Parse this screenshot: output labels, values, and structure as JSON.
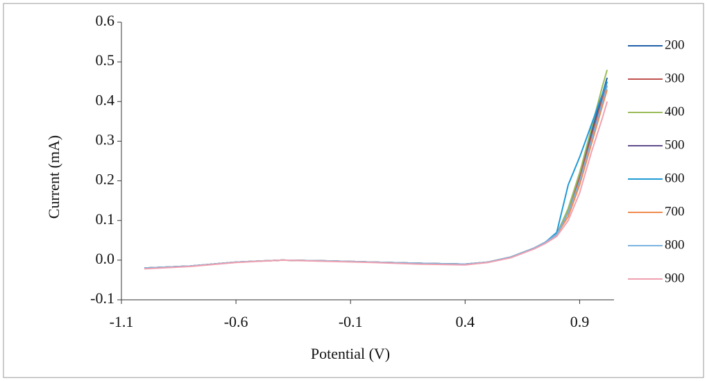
{
  "chart_data": {
    "type": "line",
    "x_label": "Potential (V)",
    "y_label": "Current (mA)",
    "x": [
      -1.0,
      -0.8,
      -0.6,
      -0.4,
      -0.2,
      0.0,
      0.2,
      0.4,
      0.5,
      0.6,
      0.7,
      0.75,
      0.8,
      0.85,
      0.9,
      0.95,
      1.0,
      1.02
    ],
    "series": [
      {
        "name": "200",
        "color": "#1f5fa8",
        "values": [
          -0.02,
          -0.015,
          -0.005,
          0,
          -0.002,
          -0.005,
          -0.008,
          -0.01,
          -0.005,
          0.008,
          0.03,
          0.045,
          0.065,
          0.13,
          0.22,
          0.32,
          0.42,
          0.46
        ]
      },
      {
        "name": "300",
        "color": "#c0504d",
        "values": [
          -0.02,
          -0.015,
          -0.005,
          0,
          -0.002,
          -0.005,
          -0.008,
          -0.01,
          -0.005,
          0.008,
          0.03,
          0.045,
          0.065,
          0.12,
          0.21,
          0.31,
          0.41,
          0.45
        ]
      },
      {
        "name": "400",
        "color": "#9bbb59",
        "values": [
          -0.02,
          -0.015,
          -0.005,
          0,
          -0.002,
          -0.005,
          -0.008,
          -0.01,
          -0.005,
          0.008,
          0.03,
          0.045,
          0.065,
          0.13,
          0.22,
          0.33,
          0.44,
          0.48
        ]
      },
      {
        "name": "500",
        "color": "#5f4b8b",
        "values": [
          -0.02,
          -0.015,
          -0.005,
          0,
          -0.002,
          -0.005,
          -0.008,
          -0.01,
          -0.005,
          0.008,
          0.03,
          0.045,
          0.065,
          0.12,
          0.2,
          0.3,
          0.4,
          0.44
        ]
      },
      {
        "name": "600",
        "color": "#1e9ad6",
        "values": [
          -0.02,
          -0.015,
          -0.005,
          0,
          -0.002,
          -0.005,
          -0.008,
          -0.01,
          -0.005,
          0.008,
          0.03,
          0.045,
          0.07,
          0.19,
          0.26,
          0.34,
          0.42,
          0.45
        ]
      },
      {
        "name": "700",
        "color": "#f08a4b",
        "values": [
          -0.02,
          -0.015,
          -0.005,
          0,
          -0.002,
          -0.005,
          -0.008,
          -0.01,
          -0.005,
          0.008,
          0.03,
          0.045,
          0.065,
          0.11,
          0.19,
          0.29,
          0.39,
          0.43
        ]
      },
      {
        "name": "800",
        "color": "#7ab3e0",
        "values": [
          -0.02,
          -0.015,
          -0.005,
          0,
          -0.002,
          -0.005,
          -0.008,
          -0.01,
          -0.005,
          0.008,
          0.03,
          0.045,
          0.065,
          0.12,
          0.2,
          0.3,
          0.4,
          0.44
        ]
      },
      {
        "name": "900",
        "color": "#f0a0b0",
        "values": [
          -0.022,
          -0.016,
          -0.006,
          0,
          -0.003,
          -0.006,
          -0.01,
          -0.012,
          -0.006,
          0.006,
          0.028,
          0.042,
          0.06,
          0.1,
          0.17,
          0.27,
          0.36,
          0.4
        ]
      }
    ],
    "xlim": [
      -1.1,
      1.05
    ],
    "xticks": [
      -1.1,
      -0.6,
      -0.1,
      0.4,
      0.9
    ],
    "ylim": [
      -0.1,
      0.6
    ],
    "yticks": [
      -0.1,
      {
        "value": 0,
        "label": "0.0"
      },
      0.1,
      0.2,
      0.3,
      0.4,
      0.5,
      0.6
    ],
    "legend": "right"
  }
}
